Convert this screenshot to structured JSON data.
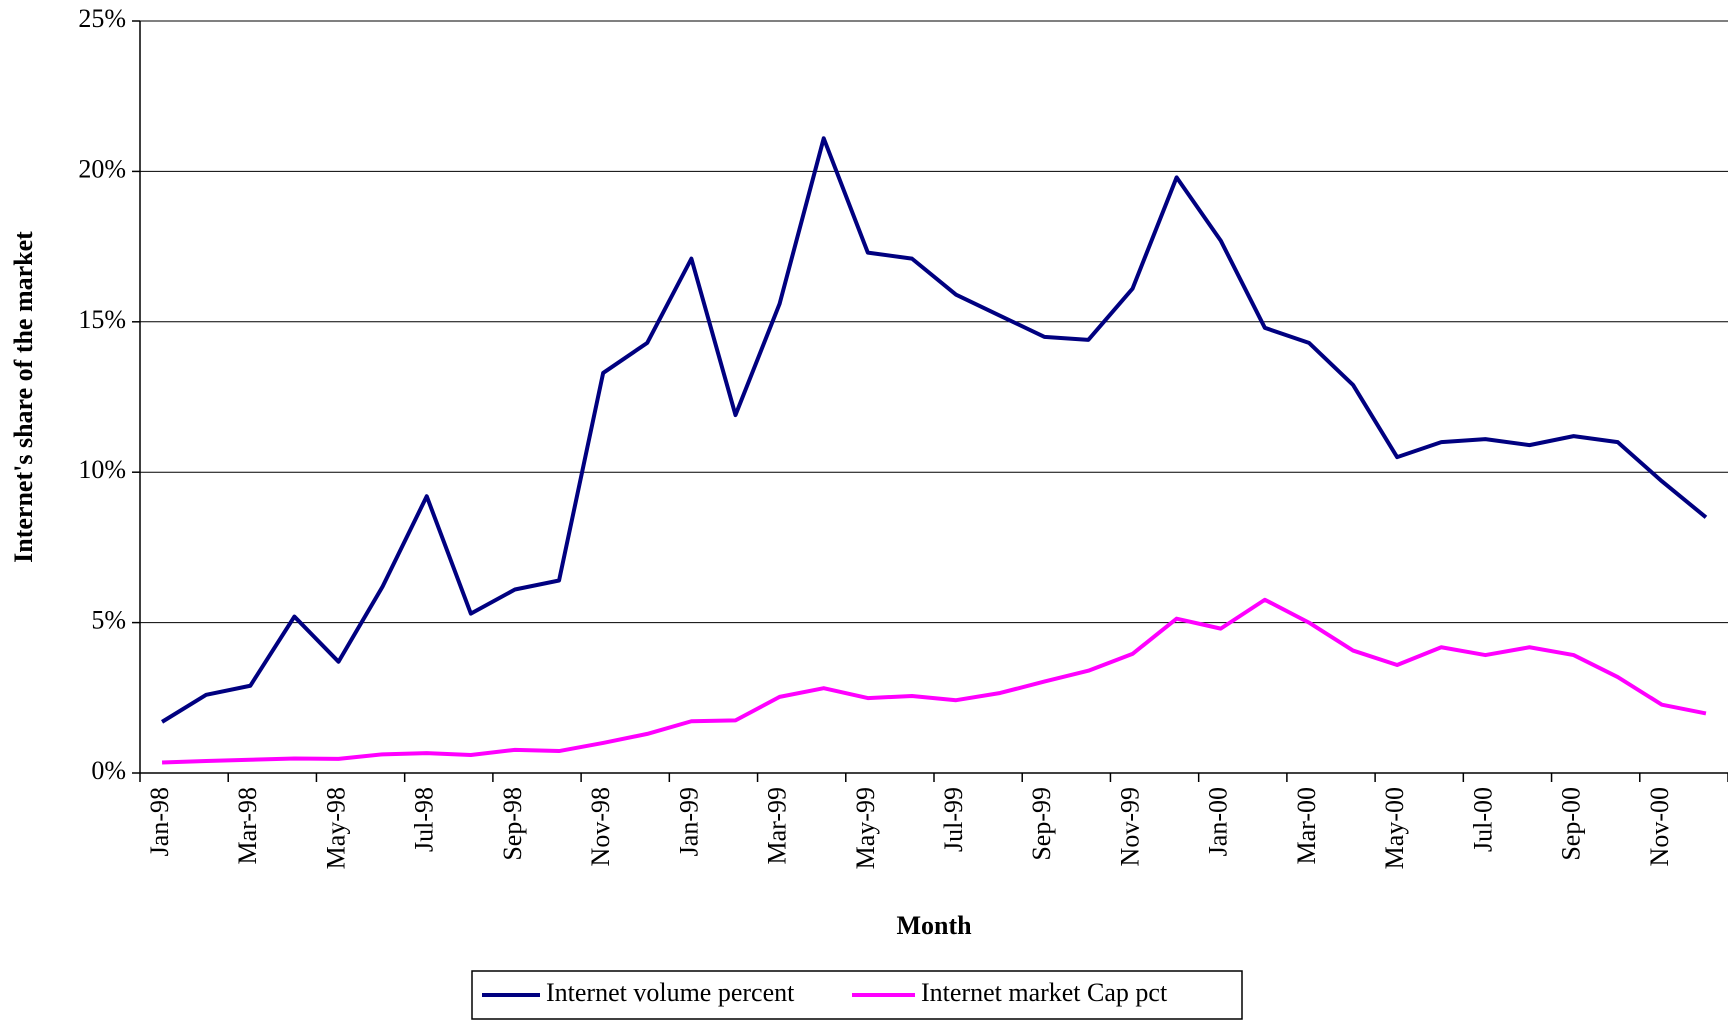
{
  "chart_data": {
    "type": "line",
    "x_label": "Month",
    "y_label": "Internet's share of the market",
    "categories": [
      "Jan-98",
      null,
      "Mar-98",
      null,
      "May-98",
      null,
      "Jul-98",
      null,
      "Sep-98",
      null,
      "Nov-98",
      null,
      "Jan-99",
      null,
      "Mar-99",
      null,
      "May-99",
      null,
      "Jul-99",
      null,
      "Sep-99",
      null,
      "Nov-99",
      null,
      "Jan-00",
      null,
      "Mar-00",
      null,
      "May-00",
      null,
      "Jul-00",
      null,
      "Sep-00",
      null,
      "Nov-00",
      null
    ],
    "series": [
      {
        "name": "Internet volume percent",
        "color": "#000080",
        "values": [
          1.7,
          2.6,
          2.9,
          5.2,
          3.7,
          6.2,
          9.2,
          5.3,
          6.1,
          6.4,
          13.3,
          14.3,
          17.1,
          11.9,
          15.6,
          21.1,
          17.3,
          17.1,
          15.9,
          15.2,
          14.5,
          14.4,
          16.1,
          19.8,
          17.7,
          14.8,
          14.3,
          12.9,
          10.5,
          11.0,
          11.1,
          10.9,
          11.2,
          11.0,
          9.7,
          8.5
        ]
      },
      {
        "name": "Internet market Cap pct",
        "color": "#ff00ff",
        "values": [
          0.35,
          0.4,
          0.44,
          0.48,
          0.47,
          0.62,
          0.66,
          0.6,
          0.77,
          0.73,
          1.0,
          1.3,
          1.72,
          1.75,
          2.53,
          2.82,
          2.49,
          2.56,
          2.42,
          2.66,
          3.04,
          3.4,
          3.96,
          5.13,
          4.8,
          5.76,
          5.0,
          4.07,
          3.59,
          4.18,
          3.92,
          4.18,
          3.92,
          3.19,
          2.27,
          1.98
        ]
      }
    ],
    "ylim": [
      0,
      25
    ],
    "yticks": [
      {
        "value": 0,
        "label": "0%"
      },
      {
        "value": 5,
        "label": "5%"
      },
      {
        "value": 10,
        "label": "10%"
      },
      {
        "value": 15,
        "label": "15%"
      },
      {
        "value": 20,
        "label": "20%"
      },
      {
        "value": 25,
        "label": "25%"
      }
    ],
    "grid": true,
    "legend": "bottom"
  }
}
